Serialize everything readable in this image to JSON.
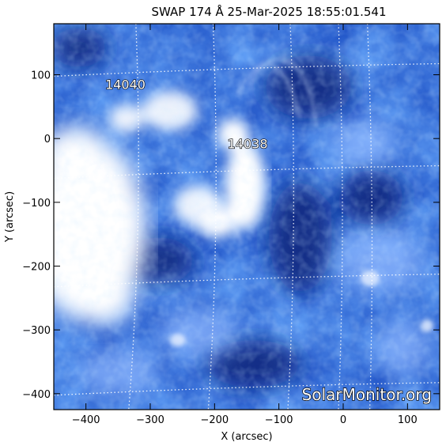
{
  "title": "SWAP 174 Å 25-Mar-2025 18:55:01.541",
  "axes": {
    "xlabel": "X (arcsec)",
    "ylabel": "Y (arcsec)",
    "xlim": [
      -450,
      150
    ],
    "ylim": [
      -425,
      180
    ],
    "x_ticks": [
      -400,
      -300,
      -200,
      -100,
      0,
      100
    ],
    "y_ticks": [
      100,
      0,
      -100,
      -200,
      -300,
      -400
    ],
    "x_tick_labels": [
      "−400",
      "−300",
      "−200",
      "−100",
      "0",
      "100"
    ],
    "y_tick_labels": [
      "100",
      "0",
      "−100",
      "−200",
      "−300",
      "−400"
    ]
  },
  "regions": [
    {
      "label": "14040",
      "x": -370,
      "y": 78
    },
    {
      "label": "14038",
      "x": -180,
      "y": -15
    }
  ],
  "watermark": "SolarMonitor.org",
  "colors": {
    "background": "#ffffff",
    "deep_blue": "#0b2a8f",
    "mid_blue": "#2f6fe0",
    "light_blue": "#9cc3ff",
    "white": "#ffffff"
  },
  "grid": "dotted white, on"
}
